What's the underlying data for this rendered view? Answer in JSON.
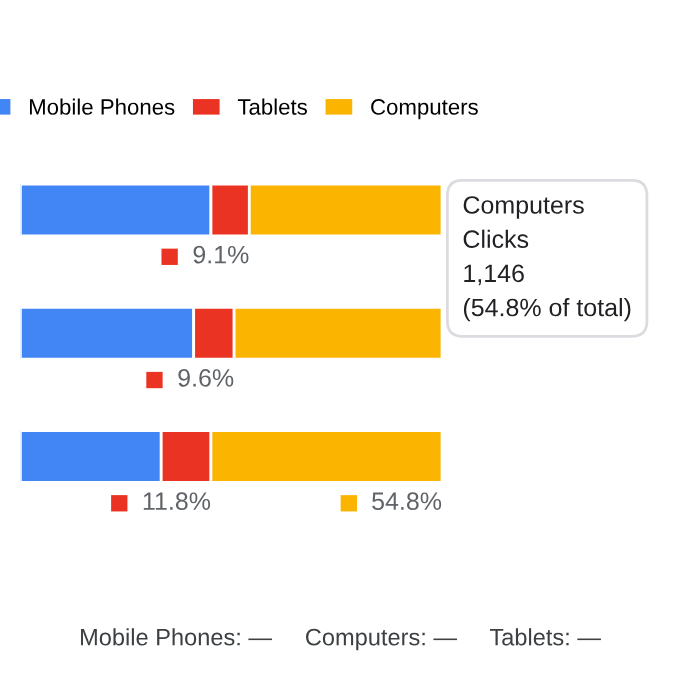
{
  "chart_data": {
    "type": "bar",
    "orientation": "horizontal",
    "stacked": true,
    "categories": [
      null,
      null,
      null
    ],
    "series": [
      {
        "name": "Mobile Phones",
        "color": "#4285f4",
        "values": [
          45.2,
          41.1,
          33.4
        ]
      },
      {
        "name": "Tablets",
        "color": "#ea3323",
        "values": [
          9.1,
          9.6,
          11.8
        ],
        "value_labels": [
          "9.1%",
          "9.6%",
          "11.8%"
        ]
      },
      {
        "name": "Computers",
        "color": "#fbb400",
        "values": [
          45.7,
          49.3,
          54.8
        ],
        "value_labels": [
          null,
          null,
          "54.8%"
        ]
      }
    ],
    "xlim": [
      0,
      100
    ],
    "grid": false,
    "legend": "top",
    "annotations": [
      "Computers\nClicks\n1,146\n(54.8% of total)",
      "Mobile Phones: —     Computers: —     Tablets: —"
    ]
  }
}
